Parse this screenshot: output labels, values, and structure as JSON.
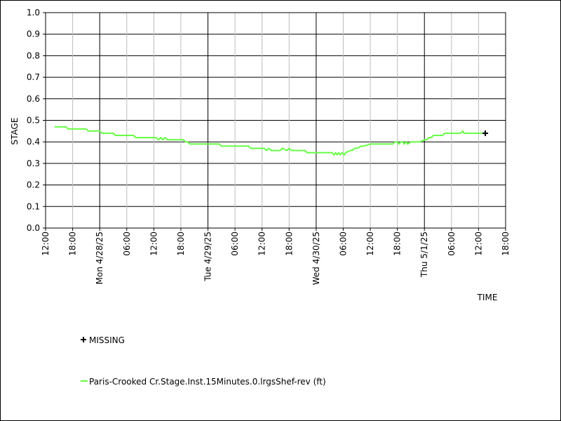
{
  "chart_data": {
    "type": "line",
    "xlabel": "TIME",
    "ylabel": "STAGE",
    "ylim": [
      0,
      1.0
    ],
    "yticks": [
      "0.0",
      "0.1",
      "0.2",
      "0.3",
      "0.4",
      "0.5",
      "0.6",
      "0.7",
      "0.8",
      "0.9",
      "1.0"
    ],
    "xrange_hours": [
      0,
      102
    ],
    "xticks": [
      {
        "h": 0,
        "label": "12:00"
      },
      {
        "h": 6,
        "label": "18:00"
      },
      {
        "h": 12,
        "label": "Mon 4/28/25",
        "major": true
      },
      {
        "h": 18,
        "label": "06:00"
      },
      {
        "h": 24,
        "label": "12:00"
      },
      {
        "h": 30,
        "label": "18:00"
      },
      {
        "h": 36,
        "label": "Tue 4/29/25",
        "major": true
      },
      {
        "h": 42,
        "label": "06:00"
      },
      {
        "h": 48,
        "label": "12:00"
      },
      {
        "h": 54,
        "label": "18:00"
      },
      {
        "h": 60,
        "label": "Wed 4/30/25",
        "major": true
      },
      {
        "h": 66,
        "label": "06:00"
      },
      {
        "h": 72,
        "label": "12:00"
      },
      {
        "h": 78,
        "label": "18:00"
      },
      {
        "h": 84,
        "label": "Thu 5/1/25",
        "major": true
      },
      {
        "h": 90,
        "label": "06:00"
      },
      {
        "h": 96,
        "label": "12:00"
      },
      {
        "h": 102,
        "label": "18:00"
      }
    ],
    "series": [
      {
        "name": "Paris-Crooked Cr.Stage.Inst.15Minutes.0.lrgsShef-rev (ft)",
        "color": "#66ff44",
        "x": [
          2,
          4.5,
          5,
          9,
          9.5,
          12,
          12.5,
          15,
          15.5,
          19.5,
          20,
          24.5,
          25,
          25.5,
          26,
          26.5,
          27,
          30.5,
          31,
          31.5,
          32,
          34.5,
          35,
          38.5,
          39,
          45,
          45.5,
          48.5,
          49,
          49.5,
          50,
          52,
          52.5,
          53.5,
          54,
          54.5,
          55,
          57.5,
          58,
          63.5,
          64,
          64.3,
          64.6,
          65,
          65.3,
          65.7,
          66.3,
          66.5,
          67.5,
          68,
          68.5,
          69,
          70,
          70.5,
          72,
          72.5,
          77,
          77.5,
          78,
          78.3,
          78.8,
          79.2,
          79.5,
          80,
          80.3,
          81,
          82,
          83,
          84,
          84.5,
          85,
          85.5,
          86,
          88,
          88.5,
          92,
          92.5,
          92.8,
          93,
          97.5
        ],
        "y": [
          0.47,
          0.47,
          0.46,
          0.46,
          0.45,
          0.45,
          0.44,
          0.44,
          0.43,
          0.43,
          0.42,
          0.42,
          0.41,
          0.42,
          0.41,
          0.42,
          0.41,
          0.41,
          0.4,
          0.4,
          0.39,
          0.39,
          0.39,
          0.39,
          0.38,
          0.38,
          0.37,
          0.37,
          0.36,
          0.37,
          0.36,
          0.36,
          0.37,
          0.36,
          0.37,
          0.36,
          0.36,
          0.36,
          0.35,
          0.35,
          0.34,
          0.35,
          0.34,
          0.35,
          0.34,
          0.35,
          0.34,
          0.35,
          0.36,
          0.36,
          0.37,
          0.37,
          0.38,
          0.38,
          0.39,
          0.39,
          0.39,
          0.4,
          0.4,
          0.39,
          0.4,
          0.4,
          0.39,
          0.4,
          0.39,
          0.4,
          0.4,
          0.4,
          0.41,
          0.41,
          0.42,
          0.42,
          0.43,
          0.43,
          0.44,
          0.44,
          0.45,
          0.44,
          0.44,
          0.44
        ]
      }
    ],
    "missing": {
      "name": "MISSING",
      "color": "#000000",
      "points": [
        {
          "x": 97.5,
          "y": 0.44
        }
      ]
    },
    "grid": true,
    "legend_position": "bottom-left"
  }
}
